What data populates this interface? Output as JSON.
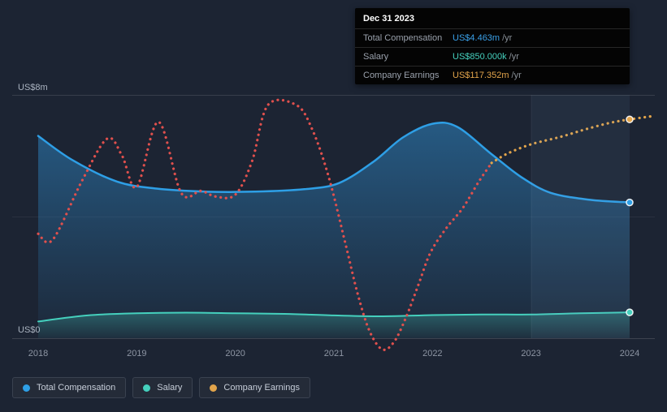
{
  "page": {
    "background": "#1c2433",
    "grid_color": "rgba(255,255,255,0.09)",
    "highlight_band_color": "rgba(130,160,205,0.08)"
  },
  "tooltip": {
    "date": "Dec 31 2023",
    "rows": [
      {
        "label": "Total Compensation",
        "value": "US$4.463m",
        "suffix": "/yr",
        "color": "#3aa0e8"
      },
      {
        "label": "Salary",
        "value": "US$850.000k",
        "suffix": "/yr",
        "color": "#45d0bd"
      },
      {
        "label": "Company Earnings",
        "value": "US$117.352m",
        "suffix": "/yr",
        "color": "#e2a44b"
      }
    ]
  },
  "legend": {
    "items": [
      {
        "label": "Total Compensation",
        "color": "#2e9fe6"
      },
      {
        "label": "Salary",
        "color": "#45d0bd"
      },
      {
        "label": "Company Earnings",
        "color": "#e2a44b"
      }
    ]
  },
  "chart_data": {
    "type": "area",
    "title": "",
    "xlabel": "",
    "ylabel": "US$",
    "grid": true,
    "legend_position": "bottom-left",
    "x_ticks": [
      2018,
      2019,
      2020,
      2021,
      2022,
      2023,
      2024
    ],
    "y_axis": {
      "top_label": "US$8m",
      "bottom_label": "US$0",
      "min": 0,
      "max": 8,
      "unit": "US$m"
    },
    "highlight_region": {
      "from": 2023,
      "to": 2024
    },
    "series": [
      {
        "name": "Total Compensation",
        "style": "solid-area",
        "color": "#2e9fe6",
        "unit": "US$m",
        "ymax": 8,
        "marker": [
          2024,
          4.463
        ],
        "points": [
          [
            2018,
            6.65
          ],
          [
            2018.35,
            5.85
          ],
          [
            2018.8,
            5.15
          ],
          [
            2019.2,
            4.92
          ],
          [
            2019.7,
            4.82
          ],
          [
            2020.2,
            4.82
          ],
          [
            2020.7,
            4.9
          ],
          [
            2021.05,
            5.1
          ],
          [
            2021.4,
            5.8
          ],
          [
            2021.7,
            6.6
          ],
          [
            2022,
            7.05
          ],
          [
            2022.25,
            6.95
          ],
          [
            2022.6,
            6.05
          ],
          [
            2022.9,
            5.3
          ],
          [
            2023.2,
            4.78
          ],
          [
            2023.6,
            4.55
          ],
          [
            2024,
            4.463
          ]
        ]
      },
      {
        "name": "Salary",
        "style": "solid-area",
        "color": "#45d0bd",
        "unit": "US$m",
        "ymax": 8,
        "marker": [
          2024,
          0.85
        ],
        "points": [
          [
            2018,
            0.55
          ],
          [
            2018.5,
            0.75
          ],
          [
            2019,
            0.82
          ],
          [
            2019.5,
            0.84
          ],
          [
            2020,
            0.82
          ],
          [
            2020.5,
            0.8
          ],
          [
            2021,
            0.75
          ],
          [
            2021.5,
            0.72
          ],
          [
            2022,
            0.76
          ],
          [
            2022.5,
            0.78
          ],
          [
            2023,
            0.78
          ],
          [
            2023.5,
            0.82
          ],
          [
            2024,
            0.85
          ]
        ]
      },
      {
        "name": "Company Earnings",
        "style": "dotted-line",
        "color": "#e2a44b",
        "past_color": "#e0504d",
        "color_switch_x": 2022.6,
        "unit": "US$m (own scale)",
        "ymax": 130.5,
        "marker": [
          2024,
          117.352
        ],
        "points": [
          [
            2018,
            56
          ],
          [
            2018.15,
            53
          ],
          [
            2018.45,
            85
          ],
          [
            2018.7,
            107
          ],
          [
            2018.85,
            98
          ],
          [
            2019,
            81
          ],
          [
            2019.22,
            116
          ],
          [
            2019.45,
            78
          ],
          [
            2019.65,
            79
          ],
          [
            2019.8,
            76
          ],
          [
            2020,
            77
          ],
          [
            2020.17,
            95
          ],
          [
            2020.33,
            125
          ],
          [
            2020.62,
            125
          ],
          [
            2020.78,
            112
          ],
          [
            2020.95,
            86
          ],
          [
            2021.12,
            50
          ],
          [
            2021.24,
            24
          ],
          [
            2021.36,
            4
          ],
          [
            2021.49,
            -6
          ],
          [
            2021.61,
            -2
          ],
          [
            2021.73,
            11
          ],
          [
            2021.86,
            29
          ],
          [
            2021.98,
            46
          ],
          [
            2022.14,
            59
          ],
          [
            2022.31,
            70
          ],
          [
            2022.47,
            84
          ],
          [
            2022.6,
            94
          ],
          [
            2022.76,
            99
          ],
          [
            2023,
            104
          ],
          [
            2023.3,
            108
          ],
          [
            2023.55,
            112
          ],
          [
            2023.8,
            115.5
          ],
          [
            2024,
            117.352
          ],
          [
            2024.22,
            119
          ]
        ]
      }
    ]
  }
}
